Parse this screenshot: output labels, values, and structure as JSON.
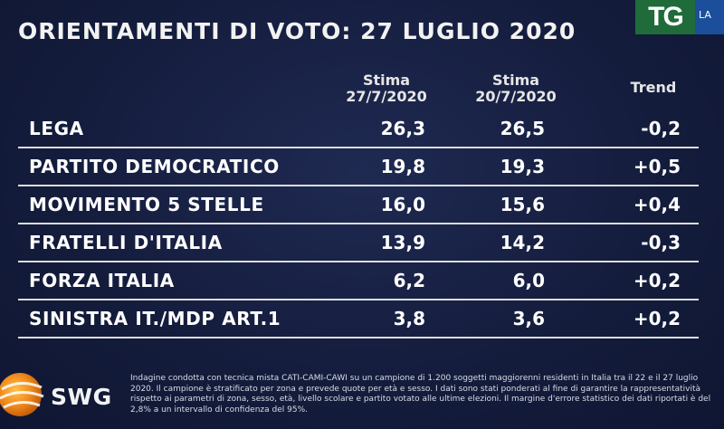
{
  "title": "ORIENTAMENTI DI VOTO: 27 LUGLIO 2020",
  "logos": {
    "tg": "TG",
    "la": "LA"
  },
  "columns": {
    "stima1_line1": "Stima",
    "stima1_line2": "27/7/2020",
    "stima2_line1": "Stima",
    "stima2_line2": "20/7/2020",
    "trend": "Trend"
  },
  "rows": [
    {
      "party": "LEGA",
      "v1": "26,3",
      "v2": "26,5",
      "trend": "-0,2"
    },
    {
      "party": "PARTITO DEMOCRATICO",
      "v1": "19,8",
      "v2": "19,3",
      "trend": "+0,5"
    },
    {
      "party": "MOVIMENTO 5 STELLE",
      "v1": "16,0",
      "v2": "15,6",
      "trend": "+0,4"
    },
    {
      "party": "FRATELLI D'ITALIA",
      "v1": "13,9",
      "v2": "14,2",
      "trend": "-0,3"
    },
    {
      "party": "FORZA ITALIA",
      "v1": "6,2",
      "v2": "6,0",
      "trend": "+0,2"
    },
    {
      "party": "SINISTRA IT./MDP ART.1",
      "v1": "3,8",
      "v2": "3,6",
      "trend": "+0,2"
    }
  ],
  "brand": "SWG",
  "note": "Indagine condotta con tecnica mista CATI-CAMI-CAWI su un campione di 1.200 soggetti maggiorenni residenti in Italia tra il 22 e il 27 luglio 2020. Il campione è stratificato per zona e prevede quote per età e sesso. I dati sono stati ponderati al fine di garantire la rappresentatività rispetto ai parametri di zona, sesso, età, livello scolare e partito votato alle ultime elezioni. Il margine d'errore statistico dei dati riportati è del 2,8% a un intervallo di confidenza del 95%.",
  "colors": {
    "background": "#141c3c",
    "tg_green": "#1f6b3a",
    "la_blue": "#1b4f9c",
    "swg_orange": "#f08a1c"
  }
}
